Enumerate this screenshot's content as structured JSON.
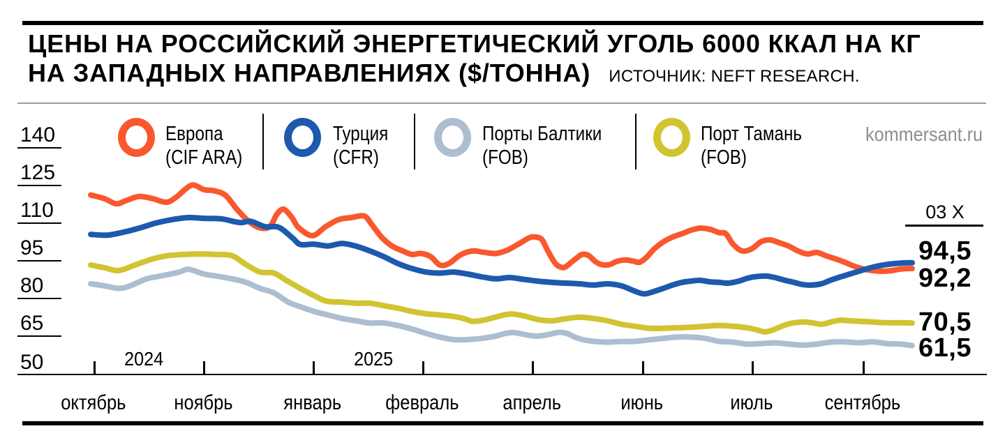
{
  "header": {
    "title_line1": "ЦЕНЫ НА РОССИЙСКИЙ ЭНЕРГЕТИЧЕСКИЙ УГОЛЬ 6000 ККАЛ НА КГ",
    "title_line2": "НА ЗАПАДНЫХ НАПРАВЛЕНИЯХ ($/ТОННА)",
    "source": "ИСТОЧНИК: NEFT RESEARCH.",
    "watermark": "kommersant.ru"
  },
  "legend": [
    {
      "line1": "Европа",
      "line2": "(CIF ARA)",
      "color": "#F9582F"
    },
    {
      "line1": "Турция",
      "line2": "(CFR)",
      "color": "#1D59AD"
    },
    {
      "line1": "Порты Балтики",
      "line2": "(FOB)",
      "color": "#ACBED0"
    },
    {
      "line1": "Порт Тамань",
      "line2": "(FOB)",
      "color": "#D2C331"
    }
  ],
  "chart_data": {
    "type": "line",
    "title": "Цены на российский энергетический уголь 6000 ккал на кг на западных направлениях ($/тонна)",
    "source": "Neft Research",
    "y_ticks": [
      140,
      125,
      110,
      95,
      80,
      65,
      50
    ],
    "ylim": [
      50,
      140
    ],
    "x_tick_labels": [
      "октябрь",
      "ноябрь",
      "январь",
      "февраль",
      "апрель",
      "июнь",
      "июль",
      "сентябрь"
    ],
    "year_labels": [
      {
        "text": "2024",
        "f": 0.065
      },
      {
        "text": "2025",
        "f": 0.344
      }
    ],
    "date_label": "03 X",
    "end_labels": [
      {
        "text": "94,5",
        "series": "Турция (CFR)"
      },
      {
        "text": "92,2",
        "series": "Европа (CIF ARA)"
      },
      {
        "text": "70,5",
        "series": "Порт Тамань (FOB)"
      },
      {
        "text": "61,5",
        "series": "Порты Балтики (FOB)"
      }
    ],
    "series": [
      {
        "name": "Европа (CIF ARA)",
        "color": "#F9582F",
        "points": [
          [
            0,
            121.5
          ],
          [
            0.017,
            120
          ],
          [
            0.031,
            118
          ],
          [
            0.044,
            119.4
          ],
          [
            0.059,
            120.9
          ],
          [
            0.076,
            120
          ],
          [
            0.092,
            118.6
          ],
          [
            0.104,
            120.6
          ],
          [
            0.116,
            124
          ],
          [
            0.125,
            125.5
          ],
          [
            0.138,
            123.6
          ],
          [
            0.15,
            123.2
          ],
          [
            0.164,
            121.4
          ],
          [
            0.178,
            115.8
          ],
          [
            0.193,
            110.8
          ],
          [
            0.206,
            108.4
          ],
          [
            0.218,
            108.9
          ],
          [
            0.227,
            114
          ],
          [
            0.235,
            115.8
          ],
          [
            0.245,
            112.5
          ],
          [
            0.253,
            108.5
          ],
          [
            0.27,
            105.3
          ],
          [
            0.286,
            108.9
          ],
          [
            0.302,
            111.7
          ],
          [
            0.317,
            112.5
          ],
          [
            0.333,
            113.1
          ],
          [
            0.342,
            109.8
          ],
          [
            0.354,
            104.7
          ],
          [
            0.367,
            101.1
          ],
          [
            0.38,
            99.2
          ],
          [
            0.391,
            97.8
          ],
          [
            0.402,
            98.2
          ],
          [
            0.414,
            96.9
          ],
          [
            0.425,
            93.6
          ],
          [
            0.436,
            94.2
          ],
          [
            0.45,
            97.6
          ],
          [
            0.465,
            99.2
          ],
          [
            0.478,
            98.7
          ],
          [
            0.493,
            98.2
          ],
          [
            0.507,
            99.5
          ],
          [
            0.52,
            101.8
          ],
          [
            0.533,
            104.3
          ],
          [
            0.54,
            104.8
          ],
          [
            0.549,
            103.8
          ],
          [
            0.556,
            99.5
          ],
          [
            0.565,
            94.5
          ],
          [
            0.572,
            92.8
          ],
          [
            0.578,
            92.9
          ],
          [
            0.59,
            96
          ],
          [
            0.598,
            97.8
          ],
          [
            0.606,
            97.4
          ],
          [
            0.615,
            94.8
          ],
          [
            0.623,
            93.7
          ],
          [
            0.632,
            93.8
          ],
          [
            0.64,
            95
          ],
          [
            0.65,
            95.6
          ],
          [
            0.66,
            95.2
          ],
          [
            0.668,
            94.7
          ],
          [
            0.676,
            96.5
          ],
          [
            0.686,
            100
          ],
          [
            0.697,
            102.8
          ],
          [
            0.708,
            104.7
          ],
          [
            0.72,
            106.1
          ],
          [
            0.731,
            107.5
          ],
          [
            0.742,
            108.3
          ],
          [
            0.754,
            107.8
          ],
          [
            0.765,
            106.5
          ],
          [
            0.773,
            106.1
          ],
          [
            0.782,
            101.9
          ],
          [
            0.793,
            99.2
          ],
          [
            0.805,
            100.1
          ],
          [
            0.816,
            102.9
          ],
          [
            0.827,
            103.6
          ],
          [
            0.839,
            102.4
          ],
          [
            0.85,
            101.1
          ],
          [
            0.861,
            99.2
          ],
          [
            0.872,
            98
          ],
          [
            0.884,
            98.6
          ],
          [
            0.895,
            97.3
          ],
          [
            0.907,
            96
          ],
          [
            0.918,
            94.7
          ],
          [
            0.929,
            93.2
          ],
          [
            0.941,
            92
          ],
          [
            0.952,
            91.4
          ],
          [
            0.963,
            91.1
          ],
          [
            0.975,
            91.4
          ],
          [
            0.986,
            92
          ],
          [
            0.995,
            92.2
          ],
          [
            1,
            92.2
          ]
        ]
      },
      {
        "name": "Турция (CFR)",
        "color": "#1D59AD",
        "points": [
          [
            0,
            105.8
          ],
          [
            0.02,
            105.5
          ],
          [
            0.04,
            106.7
          ],
          [
            0.059,
            108.3
          ],
          [
            0.079,
            110.3
          ],
          [
            0.099,
            111.7
          ],
          [
            0.119,
            112.5
          ],
          [
            0.138,
            112.2
          ],
          [
            0.159,
            112
          ],
          [
            0.176,
            110.8
          ],
          [
            0.184,
            110.5
          ],
          [
            0.195,
            111
          ],
          [
            0.212,
            108.9
          ],
          [
            0.229,
            108.6
          ],
          [
            0.246,
            104.3
          ],
          [
            0.255,
            101.8
          ],
          [
            0.272,
            101.9
          ],
          [
            0.289,
            101.2
          ],
          [
            0.306,
            102.2
          ],
          [
            0.323,
            101.1
          ],
          [
            0.34,
            99.2
          ],
          [
            0.357,
            96.9
          ],
          [
            0.374,
            94.2
          ],
          [
            0.391,
            92.2
          ],
          [
            0.408,
            90.8
          ],
          [
            0.425,
            90.4
          ],
          [
            0.442,
            90.8
          ],
          [
            0.459,
            90
          ],
          [
            0.476,
            88.9
          ],
          [
            0.493,
            88.1
          ],
          [
            0.51,
            88.6
          ],
          [
            0.527,
            87.9
          ],
          [
            0.544,
            87.2
          ],
          [
            0.561,
            86.7
          ],
          [
            0.578,
            86.4
          ],
          [
            0.595,
            86.1
          ],
          [
            0.612,
            85.6
          ],
          [
            0.629,
            86.1
          ],
          [
            0.646,
            85.3
          ],
          [
            0.663,
            83.1
          ],
          [
            0.674,
            82.1
          ],
          [
            0.686,
            83.1
          ],
          [
            0.697,
            84.3
          ],
          [
            0.708,
            85.6
          ],
          [
            0.72,
            86.7
          ],
          [
            0.731,
            87.2
          ],
          [
            0.742,
            87.5
          ],
          [
            0.754,
            86.9
          ],
          [
            0.765,
            86.7
          ],
          [
            0.776,
            86.4
          ],
          [
            0.788,
            87.1
          ],
          [
            0.799,
            88.3
          ],
          [
            0.81,
            89
          ],
          [
            0.822,
            89.2
          ],
          [
            0.833,
            88.6
          ],
          [
            0.844,
            87.6
          ],
          [
            0.856,
            86.7
          ],
          [
            0.867,
            85.8
          ],
          [
            0.878,
            85.6
          ],
          [
            0.89,
            86.2
          ],
          [
            0.901,
            87.6
          ],
          [
            0.912,
            88.8
          ],
          [
            0.924,
            90
          ],
          [
            0.935,
            91.1
          ],
          [
            0.946,
            92.2
          ],
          [
            0.958,
            93.2
          ],
          [
            0.969,
            93.8
          ],
          [
            0.98,
            94.2
          ],
          [
            0.99,
            94.45
          ],
          [
            1,
            94.5
          ]
        ]
      },
      {
        "name": "Порты Балтики (FOB)",
        "color": "#ACBED0",
        "points": [
          [
            0,
            86.1
          ],
          [
            0.017,
            85.3
          ],
          [
            0.034,
            84.3
          ],
          [
            0.048,
            85.3
          ],
          [
            0.068,
            88.1
          ],
          [
            0.088,
            89.4
          ],
          [
            0.108,
            90.8
          ],
          [
            0.119,
            91.9
          ],
          [
            0.138,
            90
          ],
          [
            0.153,
            89.2
          ],
          [
            0.172,
            88.1
          ],
          [
            0.189,
            86.7
          ],
          [
            0.206,
            84.3
          ],
          [
            0.223,
            82.5
          ],
          [
            0.24,
            78.9
          ],
          [
            0.255,
            77
          ],
          [
            0.272,
            75.1
          ],
          [
            0.289,
            73.7
          ],
          [
            0.306,
            72.3
          ],
          [
            0.323,
            71.4
          ],
          [
            0.34,
            70.5
          ],
          [
            0.357,
            70.5
          ],
          [
            0.374,
            69.5
          ],
          [
            0.391,
            68.1
          ],
          [
            0.408,
            66.4
          ],
          [
            0.425,
            64.9
          ],
          [
            0.442,
            63.9
          ],
          [
            0.459,
            63.9
          ],
          [
            0.476,
            64.4
          ],
          [
            0.493,
            65.3
          ],
          [
            0.505,
            66.4
          ],
          [
            0.515,
            66.7
          ],
          [
            0.524,
            66.2
          ],
          [
            0.535,
            65.5
          ],
          [
            0.544,
            65.3
          ],
          [
            0.554,
            65.7
          ],
          [
            0.565,
            66.5
          ],
          [
            0.572,
            66.8
          ],
          [
            0.581,
            66.2
          ],
          [
            0.59,
            64.8
          ],
          [
            0.6,
            63.8
          ],
          [
            0.612,
            63.2
          ],
          [
            0.629,
            62.9
          ],
          [
            0.646,
            63.1
          ],
          [
            0.663,
            63.2
          ],
          [
            0.68,
            63.8
          ],
          [
            0.697,
            64.4
          ],
          [
            0.714,
            64.9
          ],
          [
            0.731,
            64.9
          ],
          [
            0.748,
            64.4
          ],
          [
            0.765,
            63.2
          ],
          [
            0.782,
            62.9
          ],
          [
            0.799,
            62.1
          ],
          [
            0.816,
            62.3
          ],
          [
            0.833,
            62.6
          ],
          [
            0.85,
            62.1
          ],
          [
            0.867,
            61.7
          ],
          [
            0.884,
            62.1
          ],
          [
            0.901,
            62.9
          ],
          [
            0.918,
            63
          ],
          [
            0.935,
            62.6
          ],
          [
            0.952,
            63
          ],
          [
            0.969,
            62.3
          ],
          [
            0.986,
            62.1
          ],
          [
            1,
            61.5
          ]
        ]
      },
      {
        "name": "Порт Тамань (FOB)",
        "color": "#D2C331",
        "points": [
          [
            0,
            93.6
          ],
          [
            0.017,
            92.5
          ],
          [
            0.034,
            91.4
          ],
          [
            0.054,
            93.6
          ],
          [
            0.074,
            95.9
          ],
          [
            0.093,
            97.3
          ],
          [
            0.113,
            97.8
          ],
          [
            0.133,
            98
          ],
          [
            0.153,
            97.8
          ],
          [
            0.172,
            97.3
          ],
          [
            0.189,
            93.8
          ],
          [
            0.206,
            90.8
          ],
          [
            0.223,
            90.4
          ],
          [
            0.24,
            87.1
          ],
          [
            0.255,
            84.3
          ],
          [
            0.272,
            81.4
          ],
          [
            0.287,
            79.2
          ],
          [
            0.306,
            78.8
          ],
          [
            0.323,
            78.4
          ],
          [
            0.34,
            78.4
          ],
          [
            0.357,
            77.4
          ],
          [
            0.374,
            76.4
          ],
          [
            0.391,
            75.1
          ],
          [
            0.408,
            74.2
          ],
          [
            0.425,
            73.7
          ],
          [
            0.442,
            73.1
          ],
          [
            0.455,
            72.2
          ],
          [
            0.465,
            71.2
          ],
          [
            0.478,
            71.6
          ],
          [
            0.49,
            72.6
          ],
          [
            0.503,
            73.7
          ],
          [
            0.512,
            74.1
          ],
          [
            0.527,
            73.4
          ],
          [
            0.544,
            71.9
          ],
          [
            0.561,
            71.4
          ],
          [
            0.578,
            72.2
          ],
          [
            0.595,
            72.8
          ],
          [
            0.612,
            72.3
          ],
          [
            0.629,
            71.4
          ],
          [
            0.646,
            70
          ],
          [
            0.663,
            69.2
          ],
          [
            0.68,
            68.4
          ],
          [
            0.697,
            68.4
          ],
          [
            0.714,
            68.6
          ],
          [
            0.731,
            68.8
          ],
          [
            0.748,
            69.2
          ],
          [
            0.765,
            69.5
          ],
          [
            0.782,
            69.2
          ],
          [
            0.799,
            68.6
          ],
          [
            0.808,
            68
          ],
          [
            0.816,
            67.3
          ],
          [
            0.822,
            67
          ],
          [
            0.831,
            67.8
          ],
          [
            0.842,
            69.3
          ],
          [
            0.853,
            70.4
          ],
          [
            0.867,
            70.9
          ],
          [
            0.878,
            70.6
          ],
          [
            0.89,
            70
          ],
          [
            0.901,
            70.9
          ],
          [
            0.912,
            71.6
          ],
          [
            0.924,
            71.4
          ],
          [
            0.935,
            71.2
          ],
          [
            0.952,
            70.9
          ],
          [
            0.969,
            70.6
          ],
          [
            0.986,
            70.6
          ],
          [
            1,
            70.5
          ]
        ]
      }
    ]
  }
}
